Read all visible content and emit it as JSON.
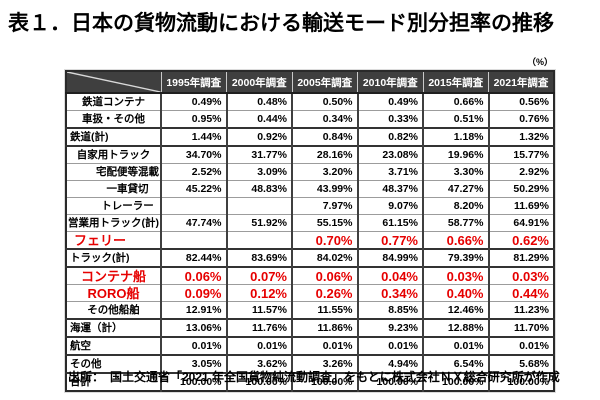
{
  "page": {
    "title": "表１．日本の貨物流動における輸送モード別分担率の推移",
    "unit_label": "（%）",
    "source": "出所：　国土交通省「2021 年全国貨物純流動調査」をもとに株式会社ＮＸ総合研究所が作成"
  },
  "table": {
    "columns": [
      "1995年調査",
      "2000年調査",
      "2005年調査",
      "2010年調査",
      "2015年調査",
      "2021年調査"
    ],
    "rows": [
      {
        "label": "鉄道コンテナ",
        "kind": "item",
        "thick": false,
        "values": [
          "0.49%",
          "0.48%",
          "0.50%",
          "0.49%",
          "0.66%",
          "0.56%"
        ]
      },
      {
        "label": "車扱・その他",
        "kind": "item",
        "thick": false,
        "values": [
          "0.95%",
          "0.44%",
          "0.34%",
          "0.33%",
          "0.51%",
          "0.76%"
        ]
      },
      {
        "label": "鉄道(計)",
        "kind": "total",
        "thick": true,
        "values": [
          "1.44%",
          "0.92%",
          "0.84%",
          "0.82%",
          "1.18%",
          "1.32%"
        ]
      },
      {
        "label": "自家用トラック",
        "kind": "item",
        "thick": true,
        "values": [
          "34.70%",
          "31.77%",
          "28.16%",
          "23.08%",
          "19.96%",
          "15.77%"
        ]
      },
      {
        "label": "宅配便等混載",
        "kind": "sub",
        "thick": false,
        "values": [
          "2.52%",
          "3.09%",
          "3.20%",
          "3.71%",
          "3.30%",
          "2.92%"
        ]
      },
      {
        "label": "一車貸切",
        "kind": "sub",
        "thick": false,
        "values": [
          "45.22%",
          "48.83%",
          "43.99%",
          "48.37%",
          "47.27%",
          "50.29%"
        ]
      },
      {
        "label": "トレーラー",
        "kind": "sub",
        "thick": false,
        "values": [
          "",
          "",
          "7.97%",
          "9.07%",
          "8.20%",
          "11.69%"
        ]
      },
      {
        "label": "営業用トラック(計)",
        "kind": "item",
        "thick": false,
        "values": [
          "47.74%",
          "51.92%",
          "55.15%",
          "61.15%",
          "58.77%",
          "64.91%"
        ]
      },
      {
        "label": "フェリー",
        "kind": "redleft",
        "thick": false,
        "values": [
          "",
          "",
          "0.70%",
          "0.77%",
          "0.66%",
          "0.62%"
        ]
      },
      {
        "label": "トラック(計)",
        "kind": "total",
        "thick": true,
        "values": [
          "82.44%",
          "83.69%",
          "84.02%",
          "84.99%",
          "79.39%",
          "81.29%"
        ]
      },
      {
        "label": "コンテナ船",
        "kind": "red",
        "thick": true,
        "values": [
          "0.06%",
          "0.07%",
          "0.06%",
          "0.04%",
          "0.03%",
          "0.03%"
        ]
      },
      {
        "label": "RORO船",
        "kind": "red",
        "thick": false,
        "values": [
          "0.09%",
          "0.12%",
          "0.26%",
          "0.34%",
          "0.40%",
          "0.44%"
        ]
      },
      {
        "label": "その他船舶",
        "kind": "item",
        "thick": false,
        "values": [
          "12.91%",
          "11.57%",
          "11.55%",
          "8.85%",
          "12.46%",
          "11.23%"
        ]
      },
      {
        "label": "海運（計）",
        "kind": "total",
        "thick": true,
        "values": [
          "13.06%",
          "11.76%",
          "11.86%",
          "9.23%",
          "12.88%",
          "11.70%"
        ]
      },
      {
        "label": "航空",
        "kind": "total",
        "thick": true,
        "values": [
          "0.01%",
          "0.01%",
          "0.01%",
          "0.01%",
          "0.01%",
          "0.01%"
        ]
      },
      {
        "label": "その他",
        "kind": "total",
        "thick": true,
        "values": [
          "3.05%",
          "3.62%",
          "3.26%",
          "4.94%",
          "6.54%",
          "5.68%"
        ]
      },
      {
        "label": "合計",
        "kind": "total",
        "thick": true,
        "values": [
          "100.00%",
          "100.00%",
          "100.00%",
          "100.00%",
          "100.00%",
          "100.00%"
        ]
      }
    ]
  },
  "colors": {
    "header_bg": "#3f3f3f",
    "header_text": "#ffffff",
    "accent_red": "#e60000",
    "border_dark": "#333333",
    "border_light": "#9c9c9c"
  }
}
